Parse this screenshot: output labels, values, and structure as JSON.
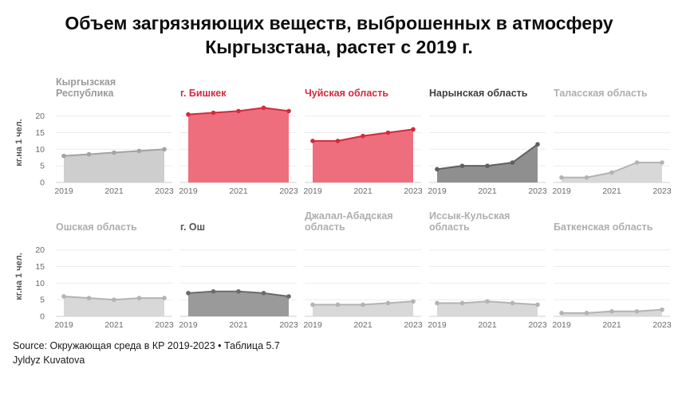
{
  "title": {
    "line1": "Объем загрязняющих веществ, выброшенных в атмосферу",
    "line2": "Кыргызстана, растет с 2019 г."
  },
  "footer": {
    "source": "Source: Окружающая среда в КР 2019-2023 • Таблица 5.7",
    "author": "Jyldyz Kuvatova"
  },
  "axis": {
    "ylabel": "кг.на 1 чел.",
    "yticks": [
      0,
      5,
      10,
      15,
      20
    ],
    "xticks": [
      "2019",
      "2021",
      "2023"
    ]
  },
  "colors": {
    "red": {
      "line": "#d42a3d",
      "fill": "#ee6e7e",
      "title": "#d42a3d"
    },
    "dark": {
      "line": "#5f5f5f",
      "fill": "#8f8f8f",
      "title": "#3f3f3f"
    },
    "darkish": {
      "line": "#6a6a6a",
      "fill": "#9a9a9a",
      "title": "#565656"
    },
    "medium": {
      "line": "#a3a3a3",
      "fill": "#cecece",
      "title": "#9a9a9a"
    },
    "light": {
      "line": "#b3b3b3",
      "fill": "#d8d8d8",
      "title": "#aeaeae"
    },
    "grid": "#ebebeb",
    "baseline": "#cfcfcf",
    "tick_text": "#6b6b6b",
    "ylabel_text": "#555555"
  },
  "chart_data": {
    "type": "area",
    "x": [
      2019,
      2020,
      2021,
      2022,
      2023
    ],
    "xlabel": "",
    "ylabel": "кг.на 1 чел.",
    "ylim": [
      0,
      24
    ],
    "grid": true,
    "legend": "none",
    "panels": [
      {
        "name": "Кыргызская Республика",
        "style": "medium",
        "values": [
          8,
          8.5,
          9,
          9.5,
          10
        ]
      },
      {
        "name": "г. Бишкек",
        "style": "red",
        "values": [
          20.5,
          21,
          21.5,
          22.5,
          21.5
        ]
      },
      {
        "name": "Чуйская область",
        "style": "red",
        "values": [
          12.5,
          12.5,
          14,
          15,
          16
        ]
      },
      {
        "name": "Нарынская область",
        "style": "dark",
        "values": [
          4,
          5,
          5,
          6,
          11.5
        ]
      },
      {
        "name": "Таласская область",
        "style": "light",
        "values": [
          1.5,
          1.5,
          3,
          6,
          6
        ]
      },
      {
        "name": "Ошская область",
        "style": "light",
        "values": [
          6,
          5.5,
          5,
          5.5,
          5.5
        ]
      },
      {
        "name": "г. Ош",
        "style": "darkish",
        "values": [
          7,
          7.5,
          7.5,
          7,
          6
        ]
      },
      {
        "name": "Джалал-Абадская область",
        "style": "light",
        "values": [
          3.5,
          3.5,
          3.5,
          4,
          4.5
        ]
      },
      {
        "name": "Иссык-Кульская область",
        "style": "light",
        "values": [
          4,
          4,
          4.5,
          4,
          3.5
        ]
      },
      {
        "name": "Баткенская область",
        "style": "light",
        "values": [
          1,
          1,
          1.5,
          1.5,
          2
        ]
      }
    ]
  }
}
